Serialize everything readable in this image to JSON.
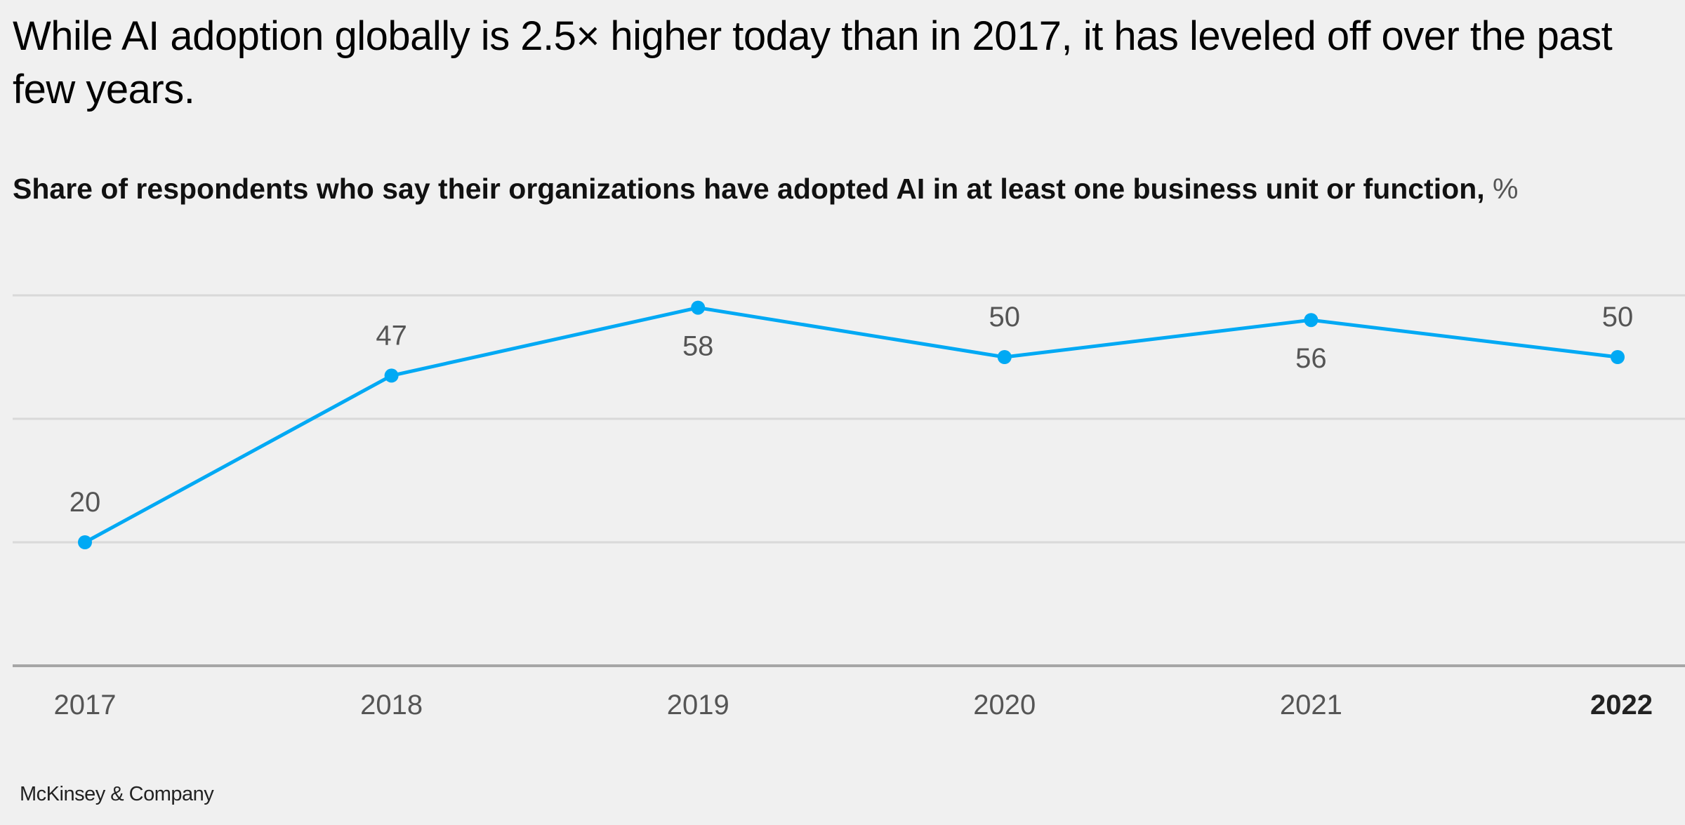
{
  "title": "While AI adoption globally is 2.5× higher today than in 2017, it has leveled off over the past few years.",
  "subtitle": "Share of respondents who say their organizations have adopted AI in at least one business unit or function,",
  "subtitle_unit": "%",
  "source": "McKinsey & Company",
  "chart_data": {
    "type": "line",
    "title": "While AI adoption globally is 2.5× higher today than in 2017, it has leveled off over the past few years.",
    "subtitle": "Share of respondents who say their organizations have adopted AI in at least one business unit or function, %",
    "categories": [
      "2017",
      "2018",
      "2019",
      "2020",
      "2021",
      "2022"
    ],
    "highlighted_category": "2022",
    "series": [
      {
        "values": [
          20,
          47,
          58,
          50,
          56,
          50
        ],
        "color": "#00a9f4"
      }
    ],
    "label_positions": [
      "above",
      "above",
      "below",
      "above",
      "below",
      "above"
    ],
    "ylim": [
      0,
      60
    ],
    "gridlines": [
      20,
      40,
      60
    ],
    "grid": true,
    "y_tick_labels_shown": false,
    "legend": "none"
  }
}
